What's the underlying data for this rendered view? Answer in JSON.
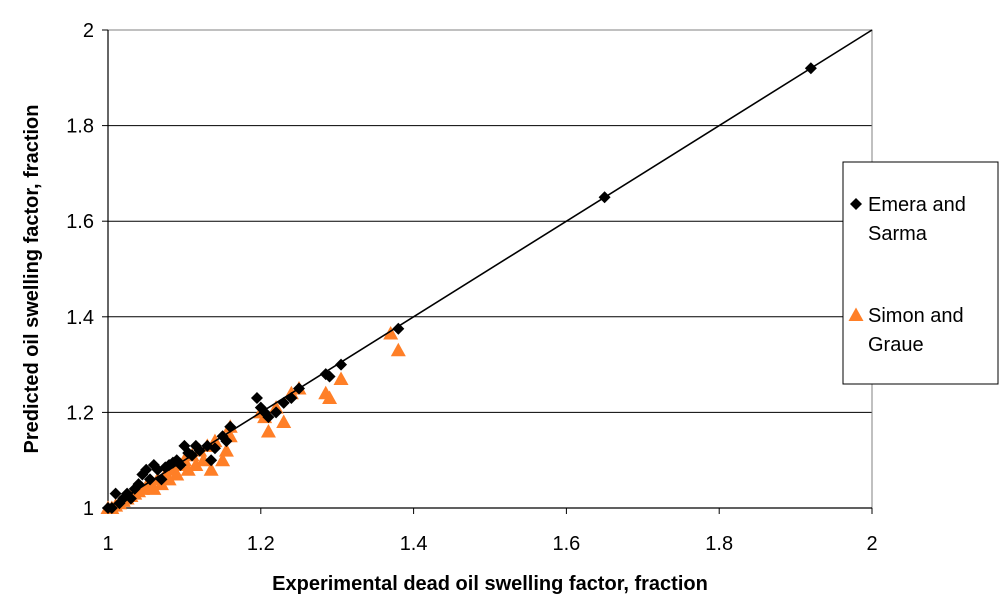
{
  "chart_data": {
    "type": "scatter",
    "title": "",
    "xlabel": "Experimental dead oil swelling factor, fraction",
    "ylabel": "Predicted oil swelling factor, fraction",
    "xlim": [
      1,
      2
    ],
    "ylim": [
      1,
      2
    ],
    "xticks": [
      "1",
      "1.2",
      "1.4",
      "1.6",
      "1.8",
      "2"
    ],
    "yticks": [
      "1",
      "1.2",
      "1.4",
      "1.6",
      "1.8",
      "2"
    ],
    "grid": "horizontal major gridlines",
    "legend_position": "right",
    "reference_line": {
      "x": [
        1,
        2
      ],
      "y": [
        1,
        2
      ]
    },
    "series": [
      {
        "name": "Emera and Sarma",
        "marker": "diamond",
        "color": "#000000",
        "legend_lines": [
          "Emera and",
          "Sarma"
        ],
        "x": [
          1.0,
          1.005,
          1.01,
          1.015,
          1.02,
          1.025,
          1.03,
          1.035,
          1.04,
          1.045,
          1.05,
          1.055,
          1.06,
          1.065,
          1.07,
          1.075,
          1.08,
          1.085,
          1.09,
          1.095,
          1.1,
          1.105,
          1.11,
          1.115,
          1.12,
          1.13,
          1.135,
          1.14,
          1.15,
          1.155,
          1.16,
          1.195,
          1.2,
          1.205,
          1.21,
          1.22,
          1.23,
          1.24,
          1.25,
          1.285,
          1.29,
          1.305,
          1.38,
          1.65,
          1.92
        ],
        "y": [
          1.0,
          1.0,
          1.03,
          1.01,
          1.02,
          1.03,
          1.02,
          1.04,
          1.05,
          1.07,
          1.08,
          1.06,
          1.09,
          1.08,
          1.06,
          1.085,
          1.09,
          1.095,
          1.1,
          1.09,
          1.13,
          1.115,
          1.11,
          1.13,
          1.12,
          1.13,
          1.1,
          1.125,
          1.15,
          1.14,
          1.17,
          1.23,
          1.21,
          1.2,
          1.19,
          1.2,
          1.22,
          1.23,
          1.25,
          1.28,
          1.275,
          1.3,
          1.375,
          1.65,
          1.92
        ]
      },
      {
        "name": "Simon and Graue",
        "marker": "triangle",
        "color": "#FF7F27",
        "legend_lines": [
          "Simon and",
          "Graue"
        ],
        "x": [
          1.0,
          1.005,
          1.01,
          1.015,
          1.02,
          1.025,
          1.03,
          1.035,
          1.04,
          1.045,
          1.05,
          1.055,
          1.06,
          1.065,
          1.07,
          1.075,
          1.08,
          1.085,
          1.09,
          1.095,
          1.1,
          1.105,
          1.11,
          1.115,
          1.12,
          1.125,
          1.13,
          1.135,
          1.14,
          1.15,
          1.155,
          1.16,
          1.16,
          1.2,
          1.205,
          1.21,
          1.22,
          1.23,
          1.24,
          1.25,
          1.285,
          1.29,
          1.305,
          1.37,
          1.38
        ],
        "y": [
          1.0,
          1.0,
          1.005,
          1.01,
          1.015,
          1.02,
          1.025,
          1.03,
          1.035,
          1.04,
          1.045,
          1.05,
          1.04,
          1.06,
          1.05,
          1.07,
          1.06,
          1.08,
          1.07,
          1.09,
          1.1,
          1.08,
          1.11,
          1.09,
          1.12,
          1.1,
          1.13,
          1.08,
          1.14,
          1.1,
          1.12,
          1.15,
          1.17,
          1.2,
          1.19,
          1.16,
          1.21,
          1.18,
          1.24,
          1.25,
          1.24,
          1.23,
          1.27,
          1.365,
          1.33
        ]
      }
    ]
  }
}
